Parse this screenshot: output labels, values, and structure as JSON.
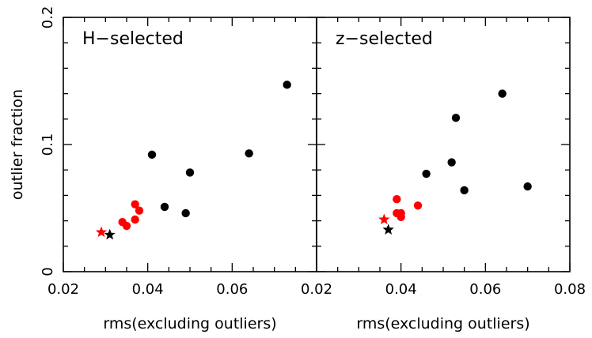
{
  "chart_data": [
    {
      "type": "scatter",
      "panel": "left",
      "title": "H−selected",
      "xlabel": "rms(excluding outliers)",
      "ylabel": "outlier fraction",
      "xlim": [
        0.02,
        0.08
      ],
      "ylim": [
        0,
        0.2
      ],
      "xticks": [
        "0.02",
        "0.04",
        "0.06"
      ],
      "yticks": [
        "0",
        "0.1",
        "0.2"
      ],
      "grid": false,
      "series": [
        {
          "marker": "circle",
          "color": "#000000",
          "points": [
            [
              0.041,
              0.092
            ],
            [
              0.044,
              0.051
            ],
            [
              0.049,
              0.046
            ],
            [
              0.05,
              0.078
            ],
            [
              0.064,
              0.093
            ],
            [
              0.073,
              0.147
            ]
          ]
        },
        {
          "marker": "circle",
          "color": "#ff0000",
          "points": [
            [
              0.034,
              0.039
            ],
            [
              0.035,
              0.036
            ],
            [
              0.037,
              0.041
            ],
            [
              0.037,
              0.053
            ],
            [
              0.038,
              0.048
            ]
          ]
        },
        {
          "marker": "star",
          "color": "#ff0000",
          "points": [
            [
              0.029,
              0.031
            ]
          ]
        },
        {
          "marker": "star",
          "color": "#000000",
          "points": [
            [
              0.031,
              0.029
            ]
          ]
        }
      ]
    },
    {
      "type": "scatter",
      "panel": "right",
      "title": "z−selected",
      "xlabel": "rms(excluding outliers)",
      "xlim": [
        0.02,
        0.08
      ],
      "ylim": [
        0,
        0.2
      ],
      "xticks": [
        "0.02",
        "0.04",
        "0.06",
        "0.08"
      ],
      "grid": false,
      "series": [
        {
          "marker": "circle",
          "color": "#000000",
          "points": [
            [
              0.046,
              0.077
            ],
            [
              0.052,
              0.086
            ],
            [
              0.053,
              0.121
            ],
            [
              0.055,
              0.064
            ],
            [
              0.064,
              0.14
            ],
            [
              0.07,
              0.067
            ]
          ]
        },
        {
          "marker": "circle",
          "color": "#ff0000",
          "points": [
            [
              0.039,
              0.057
            ],
            [
              0.039,
              0.046
            ],
            [
              0.04,
              0.046
            ],
            [
              0.04,
              0.043
            ],
            [
              0.044,
              0.052
            ]
          ]
        },
        {
          "marker": "star",
          "color": "#ff0000",
          "points": [
            [
              0.036,
              0.041
            ]
          ]
        },
        {
          "marker": "star",
          "color": "#000000",
          "points": [
            [
              0.037,
              0.033
            ]
          ]
        }
      ]
    }
  ]
}
